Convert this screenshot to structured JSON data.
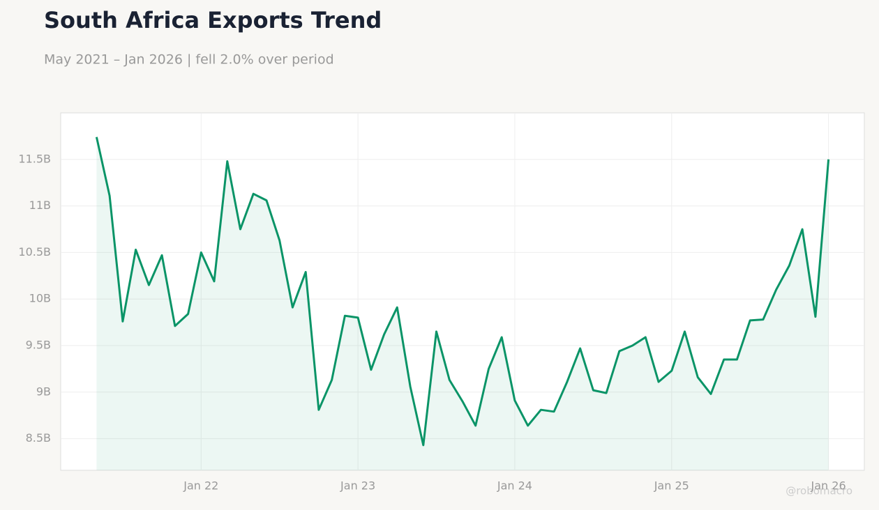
{
  "chart_data": {
    "type": "line",
    "title": "South Africa Exports Trend",
    "subtitle": "May 2021 – Jan 2026 | fell 2.0% over period",
    "watermark": "@robomacro",
    "x": [
      "2021-05",
      "2021-06",
      "2021-07",
      "2021-08",
      "2021-09",
      "2021-10",
      "2021-11",
      "2021-12",
      "2022-01",
      "2022-02",
      "2022-03",
      "2022-04",
      "2022-05",
      "2022-06",
      "2022-07",
      "2022-08",
      "2022-09",
      "2022-10",
      "2022-11",
      "2022-12",
      "2023-01",
      "2023-02",
      "2023-03",
      "2023-04",
      "2023-05",
      "2023-06",
      "2023-07",
      "2023-08",
      "2023-09",
      "2023-10",
      "2023-11",
      "2023-12",
      "2024-01",
      "2024-02",
      "2024-03",
      "2024-04",
      "2024-05",
      "2024-06",
      "2024-07",
      "2024-08",
      "2024-09",
      "2024-10",
      "2024-11",
      "2024-12",
      "2025-01",
      "2025-02",
      "2025-03",
      "2025-04",
      "2025-05",
      "2025-06",
      "2025-07",
      "2025-08",
      "2025-09",
      "2025-10",
      "2025-11",
      "2025-12",
      "2026-01"
    ],
    "series": [
      {
        "name": "Exports",
        "color": "#0a9467",
        "values": [
          11.74,
          11.11,
          9.76,
          10.53,
          10.15,
          10.47,
          9.71,
          9.84,
          10.5,
          10.19,
          11.48,
          10.75,
          11.13,
          11.06,
          10.63,
          9.91,
          10.29,
          8.81,
          9.13,
          9.82,
          9.8,
          9.24,
          9.62,
          9.91,
          9.06,
          8.43,
          9.65,
          9.13,
          8.9,
          8.64,
          9.25,
          9.59,
          8.91,
          8.64,
          8.81,
          8.79,
          9.11,
          9.47,
          9.02,
          8.99,
          9.44,
          9.5,
          9.59,
          9.11,
          9.23,
          9.65,
          9.16,
          8.98,
          9.35,
          9.35,
          9.77,
          9.78,
          10.1,
          10.36,
          10.75,
          9.81,
          11.5
        ]
      }
    ],
    "xticks": [
      {
        "value": "2022-01",
        "label": "Jan 22"
      },
      {
        "value": "2023-01",
        "label": "Jan 23"
      },
      {
        "value": "2024-01",
        "label": "Jan 24"
      },
      {
        "value": "2025-01",
        "label": "Jan 25"
      },
      {
        "value": "2026-01",
        "label": "Jan 26"
      }
    ],
    "ylim": [
      8.16,
      12.0
    ],
    "yticks": [
      {
        "value": 8.5,
        "label": "8.5B"
      },
      {
        "value": 9,
        "label": "9B"
      },
      {
        "value": 9.5,
        "label": "9.5B"
      },
      {
        "value": 10,
        "label": "10B"
      },
      {
        "value": 10.5,
        "label": "10.5B"
      },
      {
        "value": 11,
        "label": "11B"
      },
      {
        "value": 11.5,
        "label": "11.5B"
      }
    ],
    "grid": true,
    "area_fill": true
  }
}
